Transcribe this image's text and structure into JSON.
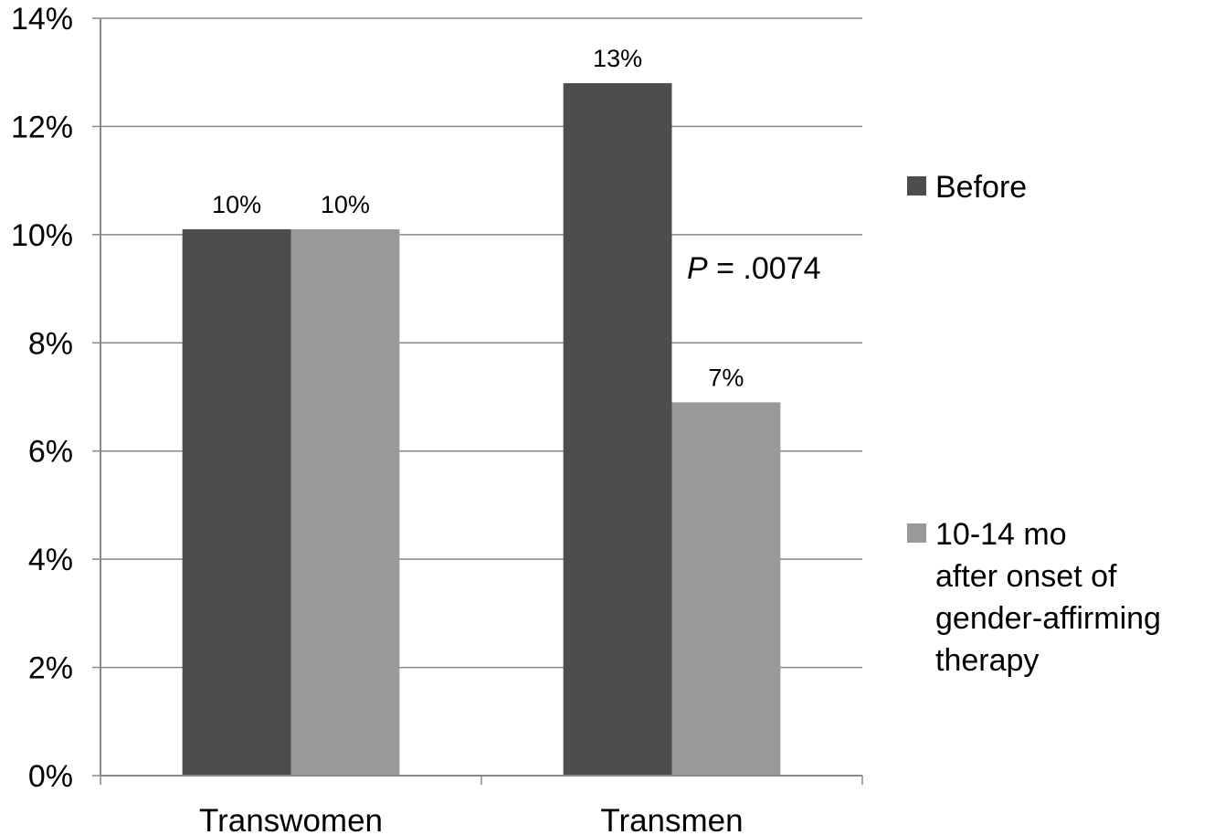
{
  "chart_data": {
    "type": "bar",
    "categories": [
      "Transwomen",
      "Transmen"
    ],
    "series": [
      {
        "name": "Before",
        "values": [
          10.1,
          12.8
        ],
        "color": "#4d4d4d"
      },
      {
        "name": "10-14 mo after onset of gender-affirming therapy",
        "values": [
          10.1,
          6.9
        ],
        "color": "#999999"
      }
    ],
    "data_labels": [
      [
        "10%",
        "13%"
      ],
      [
        "10%",
        "7%"
      ]
    ],
    "legend_lines": [
      [
        "Before"
      ],
      [
        "10-14 mo",
        "after onset of",
        "gender-affirming",
        "therapy"
      ]
    ],
    "ylim": [
      0,
      14
    ],
    "yticks": [
      0,
      2,
      4,
      6,
      8,
      10,
      12,
      14
    ],
    "ytick_labels": [
      "0%",
      "2%",
      "4%",
      "6%",
      "8%",
      "10%",
      "12%",
      "14%"
    ],
    "grid": true,
    "legend_position": "right",
    "annotation": {
      "italic": "P",
      "rest": " = .0074"
    }
  }
}
